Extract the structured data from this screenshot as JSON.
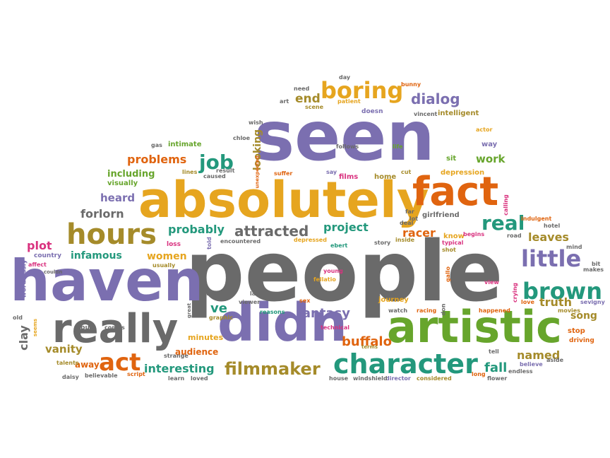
{
  "palette": {
    "purple": "#7b6fb0",
    "gray": "#6a6a6a",
    "yellow": "#e6a51f",
    "orange": "#e0640f",
    "green": "#67a52c",
    "teal": "#23987c",
    "olive": "#a58b2a",
    "pink": "#d9327f"
  },
  "words": [
    {
      "text": "people",
      "color": "gray"
    },
    {
      "text": "seen",
      "color": "purple"
    },
    {
      "text": "absolutely",
      "color": "yellow"
    },
    {
      "text": "haven",
      "color": "purple"
    },
    {
      "text": "didn",
      "color": "purple"
    },
    {
      "text": "artistic",
      "color": "green"
    },
    {
      "text": "really",
      "color": "gray"
    },
    {
      "text": "fact",
      "color": "orange"
    },
    {
      "text": "character",
      "color": "teal"
    },
    {
      "text": "hours",
      "color": "olive"
    },
    {
      "text": "boring",
      "color": "yellow"
    },
    {
      "text": "brown",
      "color": "teal"
    },
    {
      "text": "little",
      "color": "purple"
    },
    {
      "text": "filmmaker",
      "color": "olive"
    },
    {
      "text": "act",
      "color": "orange"
    },
    {
      "text": "real",
      "color": "teal"
    },
    {
      "text": "job",
      "color": "teal"
    },
    {
      "text": "attracted",
      "color": "gray"
    },
    {
      "text": "interesting",
      "color": "teal"
    },
    {
      "text": "problems",
      "color": "orange"
    },
    {
      "text": "probably",
      "color": "teal"
    },
    {
      "text": "forlorn",
      "color": "gray"
    },
    {
      "text": "plot",
      "color": "pink"
    },
    {
      "text": "infamous",
      "color": "teal"
    },
    {
      "text": "dialog",
      "color": "purple"
    },
    {
      "text": "fantasy",
      "color": "purple"
    },
    {
      "text": "buffalo",
      "color": "orange"
    },
    {
      "text": "truth",
      "color": "olive"
    },
    {
      "text": "named",
      "color": "olive"
    },
    {
      "text": "fall",
      "color": "teal"
    },
    {
      "text": "leaves",
      "color": "olive"
    },
    {
      "text": "vanity",
      "color": "olive"
    },
    {
      "text": "clay",
      "color": "gray"
    },
    {
      "text": "project",
      "color": "teal"
    },
    {
      "text": "including",
      "color": "green"
    },
    {
      "text": "heard",
      "color": "purple"
    },
    {
      "text": "women",
      "color": "yellow"
    },
    {
      "text": "racer",
      "color": "orange"
    },
    {
      "text": "song",
      "color": "olive"
    },
    {
      "text": "end",
      "color": "olive"
    },
    {
      "text": "work",
      "color": "green"
    },
    {
      "text": "ve",
      "color": "teal"
    },
    {
      "text": "audience",
      "color": "orange"
    },
    {
      "text": "looking",
      "color": "olive"
    },
    {
      "text": "away",
      "color": "orange"
    },
    {
      "text": "intelligent",
      "color": "olive"
    },
    {
      "text": "depression",
      "color": "yellow"
    },
    {
      "text": "girlfriend",
      "color": "gray"
    },
    {
      "text": "stop",
      "color": "orange"
    },
    {
      "text": "driving",
      "color": "orange"
    },
    {
      "text": "sit",
      "color": "green"
    },
    {
      "text": "way",
      "color": "purple"
    },
    {
      "text": "films",
      "color": "pink"
    },
    {
      "text": "home",
      "color": "olive"
    },
    {
      "text": "know",
      "color": "yellow"
    },
    {
      "text": "journey",
      "color": "yellow"
    },
    {
      "text": "visually",
      "color": "green"
    },
    {
      "text": "intimate",
      "color": "green"
    },
    {
      "text": "minutes",
      "color": "yellow"
    },
    {
      "text": "country",
      "color": "purple"
    },
    {
      "text": "doesn",
      "color": "purple"
    },
    {
      "text": "patient",
      "color": "yellow"
    },
    {
      "text": "scene",
      "color": "olive"
    },
    {
      "text": "bunny",
      "color": "orange"
    },
    {
      "text": "day",
      "color": "gray"
    },
    {
      "text": "need",
      "color": "gray"
    },
    {
      "text": "art",
      "color": "gray"
    },
    {
      "text": "wish",
      "color": "gray"
    },
    {
      "text": "vincent",
      "color": "gray"
    },
    {
      "text": "chloe",
      "color": "gray"
    },
    {
      "text": "gas",
      "color": "gray"
    },
    {
      "text": "life",
      "color": "green"
    },
    {
      "text": "actor",
      "color": "yellow"
    },
    {
      "text": "follows",
      "color": "gray"
    },
    {
      "text": "cut",
      "color": "olive"
    },
    {
      "text": "say",
      "color": "purple"
    },
    {
      "text": "suffer",
      "color": "orange"
    },
    {
      "text": "caused",
      "color": "gray"
    },
    {
      "text": "result",
      "color": "gray"
    },
    {
      "text": "lines",
      "color": "olive"
    },
    {
      "text": "unexpected",
      "color": "orange"
    },
    {
      "text": "calling",
      "color": "pink"
    },
    {
      "text": "indulgent",
      "color": "orange"
    },
    {
      "text": "hotel",
      "color": "gray"
    },
    {
      "text": "road",
      "color": "gray"
    },
    {
      "text": "begins",
      "color": "pink"
    },
    {
      "text": "typical",
      "color": "pink"
    },
    {
      "text": "shot",
      "color": "olive"
    },
    {
      "text": "far",
      "color": "gray"
    },
    {
      "text": "lot",
      "color": "gray"
    },
    {
      "text": "deal",
      "color": "gray"
    },
    {
      "text": "depressed",
      "color": "yellow"
    },
    {
      "text": "ebert",
      "color": "teal"
    },
    {
      "text": "story",
      "color": "gray"
    },
    {
      "text": "inside",
      "color": "olive"
    },
    {
      "text": "encountered",
      "color": "gray"
    },
    {
      "text": "loss",
      "color": "pink"
    },
    {
      "text": "told",
      "color": "purple"
    },
    {
      "text": "affect",
      "color": "pink"
    },
    {
      "text": "usually",
      "color": "olive"
    },
    {
      "text": "couldn",
      "color": "gray"
    },
    {
      "text": "mind",
      "color": "gray"
    },
    {
      "text": "bit",
      "color": "gray"
    },
    {
      "text": "makes",
      "color": "gray"
    },
    {
      "text": "sevigny",
      "color": "purple"
    },
    {
      "text": "love",
      "color": "orange"
    },
    {
      "text": "movies",
      "color": "olive"
    },
    {
      "text": "happened",
      "color": "orange"
    },
    {
      "text": "crying",
      "color": "pink"
    },
    {
      "text": "view",
      "color": "pink"
    },
    {
      "text": "young",
      "color": "pink"
    },
    {
      "text": "fellatio",
      "color": "yellow"
    },
    {
      "text": "gallo",
      "color": "orange"
    },
    {
      "text": "lack",
      "color": "gray"
    },
    {
      "text": "takes",
      "color": "gray"
    },
    {
      "text": "viewer",
      "color": "gray"
    },
    {
      "text": "self",
      "color": "gray"
    },
    {
      "text": "reasons",
      "color": "teal"
    },
    {
      "text": "sex",
      "color": "orange"
    },
    {
      "text": "bud",
      "color": "gray"
    },
    {
      "text": "comes",
      "color": "gray"
    },
    {
      "text": "great",
      "color": "gray"
    },
    {
      "text": "graphic",
      "color": "olive"
    },
    {
      "text": "technical",
      "color": "pink"
    },
    {
      "text": "watch",
      "color": "gray"
    },
    {
      "text": "racing",
      "color": "orange"
    },
    {
      "text": "don",
      "color": "gray"
    },
    {
      "text": "terms",
      "color": "olive"
    },
    {
      "text": "tell",
      "color": "gray"
    },
    {
      "text": "aside",
      "color": "gray"
    },
    {
      "text": "endless",
      "color": "gray"
    },
    {
      "text": "flower",
      "color": "gray"
    },
    {
      "text": "long",
      "color": "orange"
    },
    {
      "text": "considered",
      "color": "olive"
    },
    {
      "text": "director",
      "color": "purple"
    },
    {
      "text": "windshield",
      "color": "gray"
    },
    {
      "text": "house",
      "color": "gray"
    },
    {
      "text": "loved",
      "color": "gray"
    },
    {
      "text": "learn",
      "color": "gray"
    },
    {
      "text": "script",
      "color": "orange"
    },
    {
      "text": "believable",
      "color": "gray"
    },
    {
      "text": "daisy",
      "color": "gray"
    },
    {
      "text": "talents",
      "color": "olive"
    },
    {
      "text": "strange",
      "color": "gray"
    },
    {
      "text": "old",
      "color": "gray"
    },
    {
      "text": "seems",
      "color": "yellow"
    },
    {
      "text": "wordlessly",
      "color": "purple"
    },
    {
      "text": "believe",
      "color": "purple"
    }
  ]
}
